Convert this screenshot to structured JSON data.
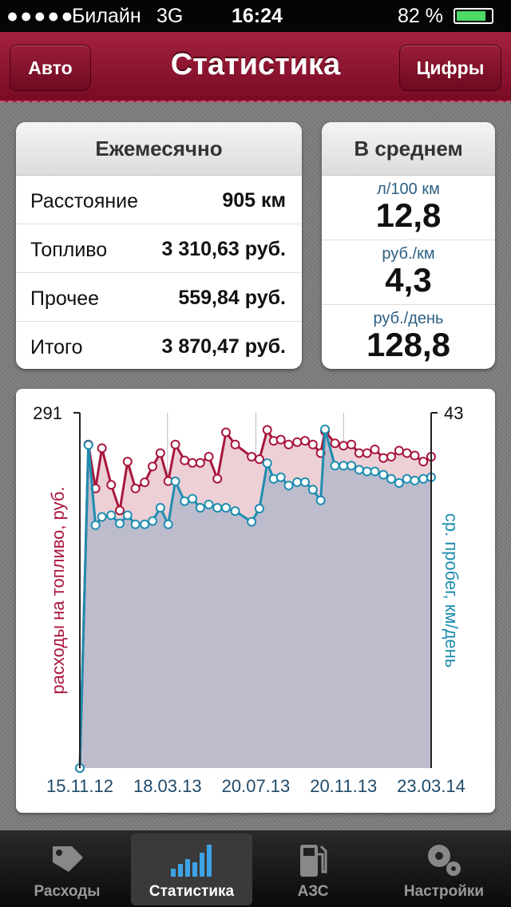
{
  "status_bar": {
    "carrier": "Билайн",
    "network": "3G",
    "time": "16:24",
    "battery": "82 %"
  },
  "nav": {
    "back": "Авто",
    "title": "Статистика",
    "right": "Цифры"
  },
  "monthly": {
    "title": "Ежемесячно",
    "rows": [
      [
        "Расстояние",
        "905 км"
      ],
      [
        "Топливо",
        "3 310,63 руб."
      ],
      [
        "Прочее",
        "559,84 руб."
      ],
      [
        "Итого",
        "3 870,47 руб."
      ]
    ]
  },
  "average": {
    "title": "В среднем",
    "items": [
      {
        "unit": "л/100 км",
        "value": "12,8"
      },
      {
        "unit": "руб./км",
        "value": "4,3"
      },
      {
        "unit": "руб./день",
        "value": "128,8"
      }
    ]
  },
  "chart_data": {
    "type": "line",
    "y_label": "расходы на топливо, руб.",
    "y2_label": "ср. пробег, км/день",
    "x": [
      "15.11.12",
      "27.11.12",
      "07.12.12",
      "16.12.12",
      "29.12.12",
      "10.01.13",
      "21.01.13",
      "01.02.13",
      "14.02.13",
      "25.02.13",
      "08.03.13",
      "19.03.13",
      "29.03.13",
      "11.04.13",
      "22.04.13",
      "03.05.13",
      "15.05.13",
      "27.05.13",
      "08.06.13",
      "21.06.13",
      "14.07.13",
      "25.07.13",
      "05.08.13",
      "14.08.13",
      "24.08.13",
      "04.09.13",
      "16.09.13",
      "27.09.13",
      "08.10.13",
      "19.10.13",
      "25.10.13",
      "08.11.13",
      "20.11.13",
      "01.12.13",
      "12.12.13",
      "23.12.13",
      "03.01.14",
      "15.01.14",
      "26.01.14",
      "06.02.14",
      "17.02.14",
      "28.02.14",
      "12.03.14",
      "23.03.14"
    ],
    "xlim": [
      "15.11.12",
      "23.03.14"
    ],
    "xticks": [
      "15.11.12",
      "18.03.13",
      "20.07.13",
      "20.11.13",
      "23.03.14"
    ],
    "ylim": [
      0,
      291
    ],
    "yticks": [
      291
    ],
    "y2lim": [
      0,
      43
    ],
    "y2ticks": [
      43
    ],
    "grid": true,
    "series": [
      {
        "name": "расходы на топливо",
        "color": "#a8173c",
        "fill": "#ecd0d6",
        "axis": "y",
        "values": [
          0,
          265,
          229,
          262,
          232,
          211,
          251,
          229,
          234,
          247,
          258,
          235,
          265,
          252,
          250,
          250,
          255,
          237,
          275,
          265,
          255,
          253,
          277,
          268,
          269,
          265,
          267,
          268,
          265,
          258,
          276,
          266,
          264,
          265,
          258,
          258,
          261,
          254,
          255,
          260,
          258,
          256,
          251,
          255
        ]
      },
      {
        "name": "ср. пробег",
        "color": "#1e8db0",
        "fill": "#bdbccd",
        "axis": "y2",
        "values": [
          0,
          39.1,
          29.4,
          30.4,
          30.6,
          29.6,
          30.6,
          29.5,
          29.5,
          29.9,
          31.5,
          29.5,
          34.7,
          32.3,
          32.6,
          31.5,
          31.9,
          31.5,
          31.5,
          31.1,
          29.8,
          31.4,
          36.9,
          35.0,
          35.2,
          34.2,
          34.6,
          34.6,
          33.7,
          32.4,
          41.0,
          36.6,
          36.6,
          36.6,
          36.1,
          35.9,
          35.9,
          35.5,
          35.0,
          34.5,
          35.0,
          34.8,
          35.0,
          35.2
        ]
      }
    ]
  },
  "tabs": [
    "Расходы",
    "Статистика",
    "АЗС",
    "Настройки"
  ]
}
